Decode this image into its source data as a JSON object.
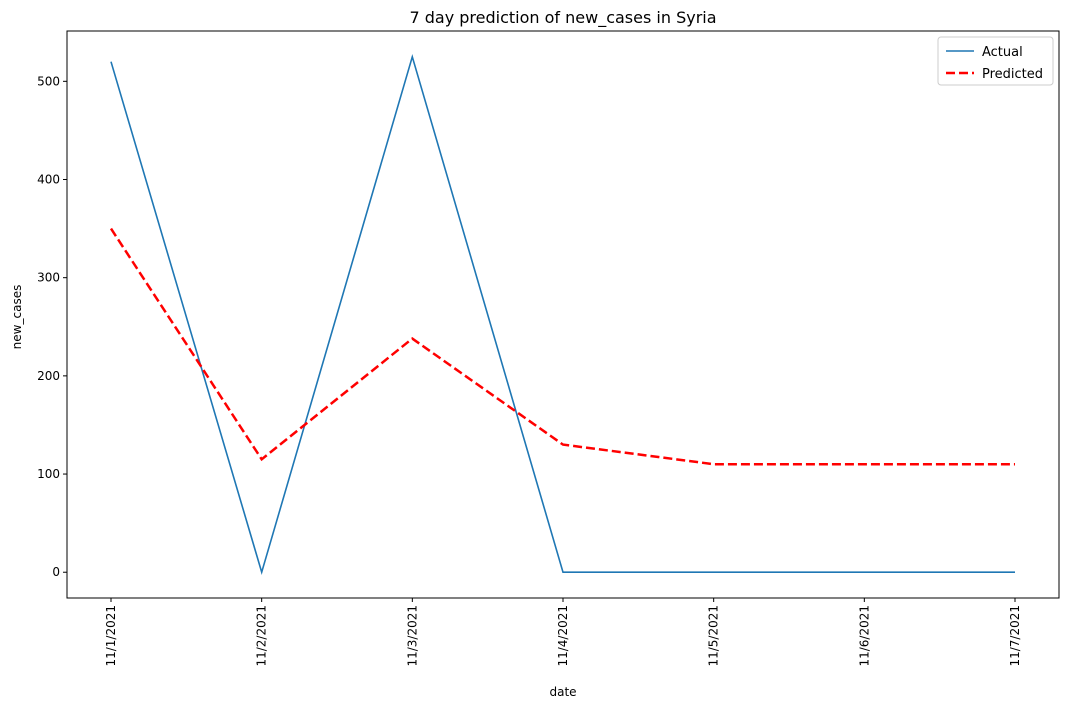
{
  "chart_data": {
    "type": "line",
    "title": "7 day prediction of new_cases in Syria",
    "xlabel": "date",
    "ylabel": "new_cases",
    "categories": [
      "11/1/2021",
      "11/2/2021",
      "11/3/2021",
      "11/4/2021",
      "11/5/2021",
      "11/6/2021",
      "11/7/2021"
    ],
    "series": [
      {
        "name": "Actual",
        "values": [
          520,
          0,
          525,
          0,
          0,
          0,
          0
        ],
        "color": "#1f77b4",
        "style": "solid"
      },
      {
        "name": "Predicted",
        "values": [
          350,
          115,
          238,
          130,
          110,
          110,
          110
        ],
        "color": "#ff0000",
        "style": "dashed"
      }
    ],
    "ylim": [
      -26.25,
      551.25
    ],
    "yticks": [
      0,
      100,
      200,
      300,
      400,
      500
    ],
    "grid": false,
    "legend_position": "upper right"
  }
}
